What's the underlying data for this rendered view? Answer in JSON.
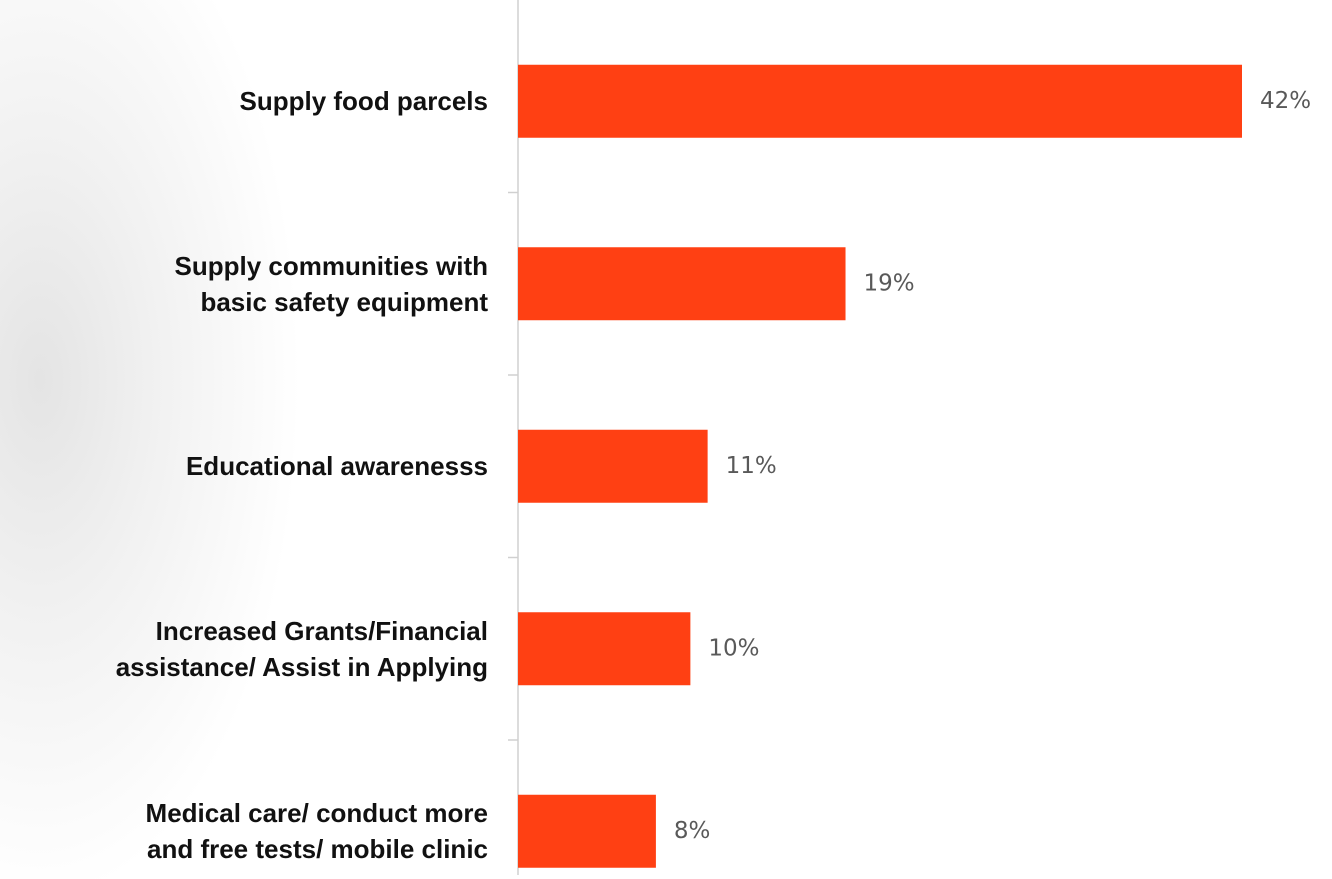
{
  "chart_data": {
    "type": "bar",
    "orientation": "horizontal",
    "categories": [
      "Supply food parcels",
      "Supply communities with\nbasic safety equipment",
      "Educational awarenesss",
      "Increased Grants/Financial\nassistance/ Assist in Applying",
      "Medical care/ conduct more\nand free tests/ mobile clinic"
    ],
    "values": [
      42,
      19,
      11,
      10,
      8
    ],
    "value_labels": [
      "42%",
      "19%",
      "11%",
      "10%",
      "8%"
    ],
    "color": "#ff4013"
  }
}
